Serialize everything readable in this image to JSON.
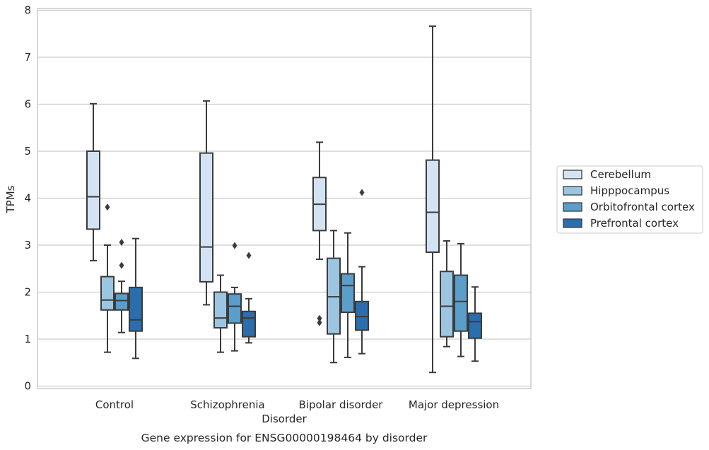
{
  "chart_data": {
    "type": "box",
    "xlabel": "Disorder",
    "ylabel": "TPMs",
    "caption": "Gene expression for ENSG00000198464 by disorder",
    "ylim": [
      -0.1,
      8.05
    ],
    "yticks": [
      "0",
      "1",
      "2",
      "3",
      "4",
      "5",
      "6",
      "7",
      "8"
    ],
    "grid": "horizontal",
    "legend_position": "right",
    "categories": [
      "Control",
      "Schizophrenia",
      "Bipolar disorder",
      "Major depression"
    ],
    "series": [
      {
        "name": "Cerebellum",
        "color": "#d3e3f3",
        "boxes": [
          {
            "whisker_low": 2.67,
            "q1": 3.34,
            "median": 4.03,
            "q3": 5.0,
            "whisker_high": 6.01,
            "outliers": []
          },
          {
            "whisker_low": 1.73,
            "q1": 2.22,
            "median": 2.96,
            "q3": 4.96,
            "whisker_high": 6.07,
            "outliers": []
          },
          {
            "whisker_low": 2.7,
            "q1": 3.31,
            "median": 3.87,
            "q3": 4.44,
            "whisker_high": 5.19,
            "outliers": [
              1.44,
              1.35
            ]
          },
          {
            "whisker_low": 0.29,
            "q1": 2.85,
            "median": 3.7,
            "q3": 4.81,
            "whisker_high": 7.66,
            "outliers": []
          }
        ]
      },
      {
        "name": "Hipppocampus",
        "color": "#9bc5e0",
        "boxes": [
          {
            "whisker_low": 0.72,
            "q1": 1.62,
            "median": 1.83,
            "q3": 2.33,
            "whisker_high": 3.0,
            "outliers": [
              3.81
            ]
          },
          {
            "whisker_low": 0.72,
            "q1": 1.24,
            "median": 1.45,
            "q3": 2.0,
            "whisker_high": 2.36,
            "outliers": []
          },
          {
            "whisker_low": 0.5,
            "q1": 1.11,
            "median": 1.9,
            "q3": 2.72,
            "whisker_high": 3.31,
            "outliers": []
          },
          {
            "whisker_low": 0.84,
            "q1": 1.05,
            "median": 1.7,
            "q3": 2.44,
            "whisker_high": 3.09,
            "outliers": []
          }
        ]
      },
      {
        "name": "Orbitofrontal cortex",
        "color": "#5b9ec9",
        "boxes": [
          {
            "whisker_low": 1.14,
            "q1": 1.62,
            "median": 1.82,
            "q3": 1.97,
            "whisker_high": 2.23,
            "outliers": [
              3.06,
              2.57
            ]
          },
          {
            "whisker_low": 0.75,
            "q1": 1.34,
            "median": 1.7,
            "q3": 1.96,
            "whisker_high": 2.1,
            "outliers": [
              2.99
            ]
          },
          {
            "whisker_low": 0.61,
            "q1": 1.57,
            "median": 2.14,
            "q3": 2.39,
            "whisker_high": 3.26,
            "outliers": []
          },
          {
            "whisker_low": 0.63,
            "q1": 1.17,
            "median": 1.8,
            "q3": 2.36,
            "whisker_high": 3.03,
            "outliers": []
          }
        ]
      },
      {
        "name": "Prefrontal cortex",
        "color": "#2b6ead",
        "boxes": [
          {
            "whisker_low": 0.59,
            "q1": 1.17,
            "median": 1.41,
            "q3": 2.1,
            "whisker_high": 3.14,
            "outliers": []
          },
          {
            "whisker_low": 0.92,
            "q1": 1.05,
            "median": 1.45,
            "q3": 1.59,
            "whisker_high": 1.86,
            "outliers": [
              2.78
            ]
          },
          {
            "whisker_low": 0.69,
            "q1": 1.19,
            "median": 1.48,
            "q3": 1.8,
            "whisker_high": 2.54,
            "outliers": [
              4.12
            ]
          },
          {
            "whisker_low": 0.53,
            "q1": 1.02,
            "median": 1.37,
            "q3": 1.55,
            "whisker_high": 2.11,
            "outliers": []
          }
        ]
      }
    ]
  }
}
